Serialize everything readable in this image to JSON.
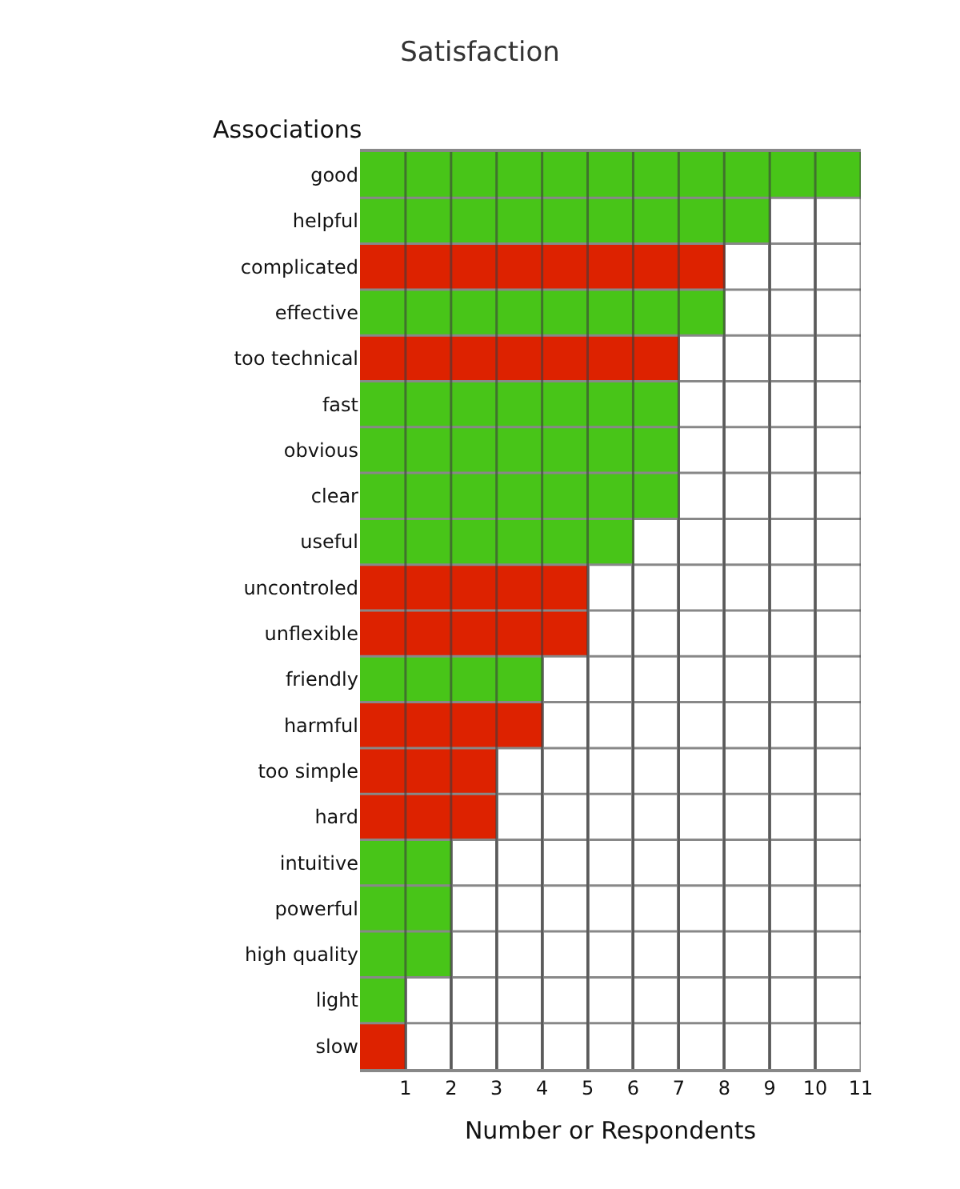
{
  "chart_data": {
    "type": "bar",
    "orientation": "horizontal",
    "title": "Satisfaction",
    "ylabel": "Associations",
    "xlabel": "Number or Respondents",
    "categories": [
      "good",
      "helpful",
      "complicated",
      "effective",
      "too technical",
      "fast",
      "obvious",
      "clear",
      "useful",
      "uncontroled",
      "unflexible",
      "friendly",
      "harmful",
      "too simple",
      "hard",
      "intuitive",
      "powerful",
      "high quality",
      "light",
      "slow"
    ],
    "values": [
      11,
      9,
      8,
      8,
      7,
      7,
      7,
      7,
      6,
      5,
      5,
      4,
      4,
      3,
      3,
      2,
      2,
      2,
      1,
      1
    ],
    "colors": [
      "#48c518",
      "#48c518",
      "#dd2200",
      "#48c518",
      "#dd2200",
      "#48c518",
      "#48c518",
      "#48c518",
      "#48c518",
      "#dd2200",
      "#dd2200",
      "#48c518",
      "#dd2200",
      "#dd2200",
      "#dd2200",
      "#48c518",
      "#48c518",
      "#48c518",
      "#48c518",
      "#dd2200"
    ],
    "xlim": [
      0,
      11
    ],
    "xticks": [
      1,
      2,
      3,
      4,
      5,
      6,
      7,
      8,
      9,
      10,
      11
    ],
    "grid": true
  }
}
